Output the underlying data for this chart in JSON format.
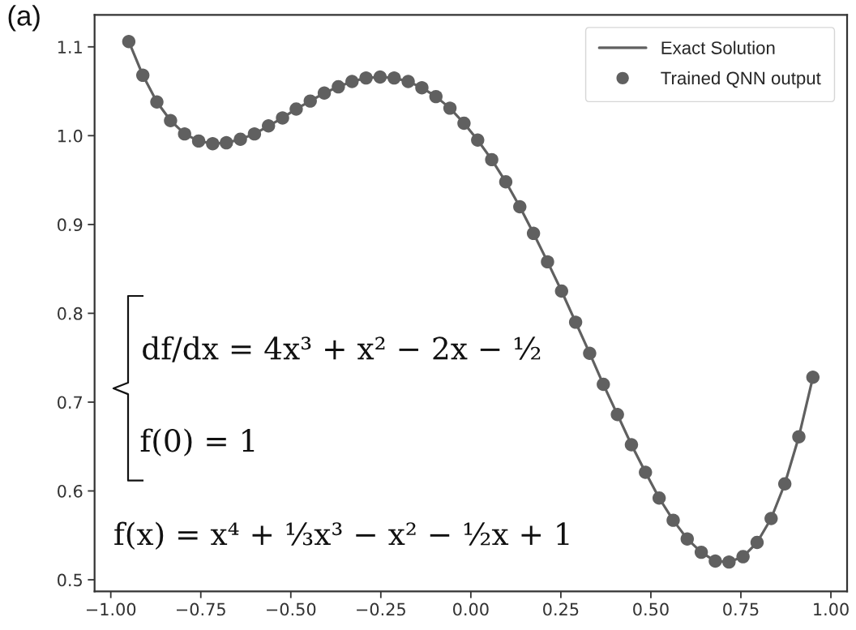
{
  "chart_data": {
    "type": "line",
    "x": [
      -0.95,
      -0.911,
      -0.872,
      -0.834,
      -0.795,
      -0.756,
      -0.717,
      -0.679,
      -0.64,
      -0.601,
      -0.562,
      -0.523,
      -0.485,
      -0.446,
      -0.407,
      -0.368,
      -0.33,
      -0.291,
      -0.252,
      -0.213,
      -0.174,
      -0.136,
      -0.097,
      -0.058,
      -0.019,
      0.019,
      0.058,
      0.097,
      0.136,
      0.174,
      0.213,
      0.252,
      0.291,
      0.33,
      0.368,
      0.407,
      0.446,
      0.485,
      0.523,
      0.562,
      0.601,
      0.64,
      0.679,
      0.717,
      0.756,
      0.795,
      0.834,
      0.872,
      0.911,
      0.95
    ],
    "series": [
      {
        "name": "Exact Solution",
        "color": "#606060",
        "values": [
          1.106,
          1.068,
          1.038,
          1.017,
          1.002,
          0.994,
          0.991,
          0.992,
          0.996,
          1.002,
          1.011,
          1.02,
          1.03,
          1.039,
          1.048,
          1.055,
          1.061,
          1.065,
          1.066,
          1.065,
          1.061,
          1.054,
          1.044,
          1.031,
          1.014,
          0.995,
          0.973,
          0.948,
          0.92,
          0.89,
          0.858,
          0.825,
          0.79,
          0.755,
          0.72,
          0.686,
          0.652,
          0.621,
          0.592,
          0.567,
          0.546,
          0.531,
          0.521,
          0.52,
          0.526,
          0.542,
          0.569,
          0.608,
          0.661,
          0.728
        ]
      },
      {
        "name": "Trained QNN output",
        "type": "scatter",
        "marker": "circle",
        "color": "#606060",
        "values": [
          1.106,
          1.068,
          1.038,
          1.017,
          1.002,
          0.994,
          0.991,
          0.992,
          0.996,
          1.002,
          1.011,
          1.02,
          1.03,
          1.039,
          1.048,
          1.055,
          1.061,
          1.065,
          1.066,
          1.065,
          1.061,
          1.054,
          1.044,
          1.031,
          1.014,
          0.995,
          0.973,
          0.948,
          0.92,
          0.89,
          0.858,
          0.825,
          0.79,
          0.755,
          0.72,
          0.686,
          0.652,
          0.621,
          0.592,
          0.567,
          0.546,
          0.531,
          0.521,
          0.52,
          0.526,
          0.542,
          0.569,
          0.608,
          0.661,
          0.728
        ]
      }
    ],
    "xlim": [
      -1.045,
      1.045
    ],
    "ylim": [
      0.487,
      1.136
    ],
    "xticks": [
      {
        "value": -1,
        "label": "−1.00"
      },
      {
        "value": -0.75,
        "label": "−0.75"
      },
      {
        "value": -0.5,
        "label": "−0.50"
      },
      {
        "value": -0.25,
        "label": "−0.25"
      },
      {
        "value": 0,
        "label": "0.00"
      },
      {
        "value": 0.25,
        "label": "0.25"
      },
      {
        "value": 0.5,
        "label": "0.50"
      },
      {
        "value": 0.75,
        "label": "0.75"
      },
      {
        "value": 1,
        "label": "1.00"
      }
    ],
    "yticks": [
      0.5,
      0.6,
      0.7,
      0.8,
      0.9,
      {
        "value": 1,
        "label": "1.0"
      },
      1.1
    ],
    "grid": false,
    "legend": "top right",
    "annotations": [
      "(a)",
      "df/dx = 4x³ + x² − 2x − ½",
      "f(0) = 1",
      "f(x) = x⁴ + ⅓x³ − x² − ½x + 1"
    ]
  }
}
